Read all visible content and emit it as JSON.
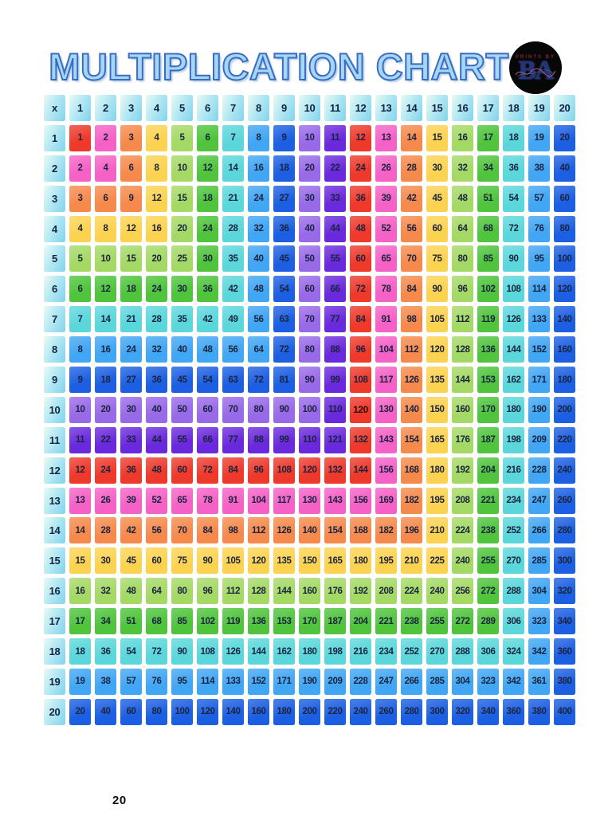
{
  "page": {
    "background": "#ffffff",
    "page_number": "20"
  },
  "header": {
    "title": "MULTIPLICATION CHART",
    "title_fill": "#a5d7f3",
    "title_outline": "#3a6cc6"
  },
  "logo": {
    "top_text": "PRINTS BY",
    "monogram": "BA"
  },
  "chart_data": {
    "type": "table",
    "title": "MULTIPLICATION CHART",
    "corner_label": "x",
    "column_headers": [
      1,
      2,
      3,
      4,
      5,
      6,
      7,
      8,
      9,
      10,
      11,
      12,
      13,
      14,
      15,
      16,
      17,
      18,
      19,
      20
    ],
    "row_headers": [
      1,
      2,
      3,
      4,
      5,
      6,
      7,
      8,
      9,
      10,
      11,
      12,
      13,
      14,
      15,
      16,
      17,
      18,
      19,
      20
    ],
    "rows": [
      [
        1,
        2,
        3,
        4,
        5,
        6,
        7,
        8,
        9,
        10,
        11,
        12,
        13,
        14,
        15,
        16,
        17,
        18,
        19,
        20
      ],
      [
        2,
        4,
        6,
        8,
        10,
        12,
        14,
        16,
        18,
        20,
        22,
        24,
        26,
        28,
        30,
        32,
        34,
        36,
        38,
        40
      ],
      [
        3,
        6,
        9,
        12,
        15,
        18,
        21,
        24,
        27,
        30,
        33,
        36,
        39,
        42,
        45,
        48,
        51,
        54,
        57,
        60
      ],
      [
        4,
        8,
        12,
        16,
        20,
        24,
        28,
        32,
        36,
        40,
        44,
        48,
        52,
        56,
        60,
        64,
        68,
        72,
        76,
        80
      ],
      [
        5,
        10,
        15,
        20,
        25,
        30,
        35,
        40,
        45,
        50,
        55,
        60,
        65,
        70,
        75,
        80,
        85,
        90,
        95,
        100
      ],
      [
        6,
        12,
        18,
        24,
        30,
        36,
        42,
        48,
        54,
        60,
        66,
        72,
        78,
        84,
        90,
        96,
        102,
        108,
        114,
        120
      ],
      [
        7,
        14,
        21,
        28,
        35,
        42,
        49,
        56,
        63,
        70,
        77,
        84,
        91,
        98,
        105,
        112,
        119,
        126,
        133,
        140
      ],
      [
        8,
        16,
        24,
        32,
        40,
        48,
        56,
        64,
        72,
        80,
        88,
        96,
        104,
        112,
        120,
        128,
        136,
        144,
        152,
        160
      ],
      [
        9,
        18,
        27,
        36,
        45,
        54,
        63,
        72,
        81,
        90,
        99,
        108,
        117,
        126,
        135,
        144,
        153,
        162,
        171,
        180
      ],
      [
        10,
        20,
        30,
        40,
        50,
        60,
        70,
        80,
        90,
        100,
        110,
        120,
        130,
        140,
        150,
        160,
        170,
        180,
        190,
        200
      ],
      [
        11,
        22,
        33,
        44,
        55,
        66,
        77,
        88,
        99,
        110,
        121,
        132,
        143,
        154,
        165,
        176,
        187,
        198,
        209,
        220
      ],
      [
        12,
        24,
        36,
        48,
        60,
        72,
        84,
        96,
        108,
        120,
        132,
        144,
        156,
        168,
        180,
        192,
        204,
        216,
        228,
        240
      ],
      [
        13,
        26,
        39,
        52,
        65,
        78,
        91,
        104,
        117,
        130,
        143,
        156,
        169,
        182,
        195,
        208,
        221,
        234,
        247,
        260
      ],
      [
        14,
        28,
        42,
        56,
        70,
        84,
        98,
        112,
        126,
        140,
        154,
        168,
        182,
        196,
        210,
        224,
        238,
        252,
        266,
        280
      ],
      [
        15,
        30,
        45,
        60,
        75,
        90,
        105,
        120,
        135,
        150,
        165,
        180,
        195,
        210,
        225,
        240,
        255,
        270,
        285,
        300
      ],
      [
        16,
        32,
        48,
        64,
        80,
        96,
        112,
        128,
        144,
        160,
        176,
        192,
        208,
        224,
        240,
        256,
        272,
        288,
        304,
        320
      ],
      [
        17,
        34,
        51,
        68,
        85,
        102,
        119,
        136,
        153,
        170,
        187,
        204,
        221,
        238,
        255,
        272,
        289,
        306,
        323,
        340
      ],
      [
        18,
        36,
        54,
        72,
        90,
        108,
        126,
        144,
        162,
        180,
        198,
        216,
        234,
        252,
        270,
        288,
        306,
        324,
        342,
        360
      ],
      [
        19,
        38,
        57,
        76,
        95,
        114,
        133,
        152,
        171,
        190,
        209,
        228,
        247,
        266,
        285,
        304,
        323,
        342,
        361,
        380
      ],
      [
        20,
        40,
        60,
        80,
        100,
        120,
        140,
        160,
        180,
        200,
        220,
        240,
        260,
        280,
        300,
        320,
        340,
        360,
        380,
        400
      ]
    ],
    "palette": [
      "#ee392b",
      "#f561c6",
      "#f68a4d",
      "#fcd351",
      "#a5d966",
      "#4fc43c",
      "#5bd7db",
      "#41a6f3",
      "#1c5fe2",
      "#996ae8",
      "#6a29dc"
    ],
    "color_rule": "cell background = palette[(max(row,col)-1) mod 11]",
    "bold_cell": {
      "row": 10,
      "col": 12,
      "value": 120
    },
    "header_gradient": [
      "#eafaf2",
      "#81d3ee"
    ],
    "cell_text_color": "#1a2440",
    "legend_position": "none",
    "grid_lines": "white gaps between cells"
  }
}
